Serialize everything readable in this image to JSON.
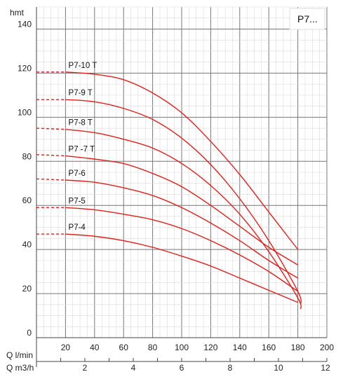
{
  "chart_data": {
    "type": "line",
    "title": "P7...",
    "ylabel": "hmt",
    "xlabel": "Q l/min",
    "x2label": "Q m3/h",
    "xlim": [
      0,
      200
    ],
    "ylim": [
      0,
      150
    ],
    "x_ticks": [
      "20",
      "40",
      "60",
      "80",
      "100",
      "120",
      "140",
      "160",
      "180",
      "200"
    ],
    "x_tick_values": [
      20,
      40,
      60,
      80,
      100,
      120,
      140,
      160,
      180,
      200
    ],
    "x2_ticks": [
      "2",
      "4",
      "6",
      "8",
      "10",
      "12"
    ],
    "x2_tick_values": [
      2,
      4,
      6,
      8,
      10,
      12
    ],
    "y_ticks": [
      "0",
      "20",
      "40",
      "60",
      "80",
      "100",
      "120",
      "140"
    ],
    "y_tick_values": [
      0,
      20,
      40,
      60,
      80,
      100,
      120,
      140
    ],
    "grid": true,
    "curve_color": "#e0201b",
    "series": [
      {
        "name": "P7-10 T",
        "dashed_to": 20,
        "x": [
          0,
          20,
          40,
          60,
          80,
          100,
          120,
          140,
          160,
          180
        ],
        "y": [
          120.5,
          120.5,
          119.5,
          117,
          111,
          102,
          89,
          74,
          57,
          40
        ]
      },
      {
        "name": "P7-9 T",
        "dashed_to": 20,
        "x": [
          0,
          20,
          40,
          60,
          80,
          100,
          120,
          140,
          160,
          180,
          182
        ],
        "y": [
          108,
          108,
          107,
          104,
          99,
          90.5,
          78.5,
          63,
          44,
          21,
          15
        ]
      },
      {
        "name": "P7-8 T",
        "dashed_to": 20,
        "x": [
          0,
          20,
          40,
          60,
          80,
          100,
          120,
          140,
          160,
          180,
          182
        ],
        "y": [
          95,
          94.5,
          93,
          90,
          86,
          79,
          69,
          56,
          39,
          18,
          13
        ]
      },
      {
        "name": "P7 -7 T",
        "dashed_to": 20,
        "x": [
          0,
          20,
          40,
          60,
          80,
          100,
          120,
          140,
          160,
          180
        ],
        "y": [
          83,
          82.5,
          81,
          79,
          74.5,
          68.5,
          60,
          50.5,
          41,
          33
        ]
      },
      {
        "name": "P7-6",
        "dashed_to": 20,
        "x": [
          0,
          20,
          40,
          60,
          80,
          100,
          120,
          140,
          160,
          180
        ],
        "y": [
          72,
          71.5,
          70.5,
          68,
          64.5,
          59,
          52,
          44,
          35,
          27
        ]
      },
      {
        "name": "P7-5",
        "dashed_to": 20,
        "x": [
          0,
          20,
          40,
          60,
          80,
          100,
          120,
          140,
          160,
          180
        ],
        "y": [
          59,
          59,
          58,
          56,
          53.5,
          49.5,
          44,
          37.5,
          30,
          21
        ]
      },
      {
        "name": "P7-4",
        "dashed_to": 20,
        "x": [
          0,
          20,
          40,
          60,
          80,
          100,
          120,
          140,
          160,
          180
        ],
        "y": [
          47,
          47,
          46,
          44,
          41,
          37,
          32.5,
          27,
          21.5,
          16
        ]
      }
    ]
  }
}
